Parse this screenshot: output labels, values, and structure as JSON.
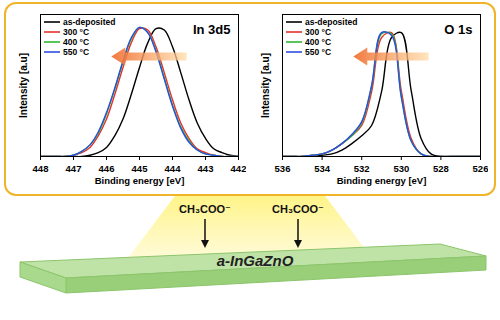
{
  "chart_data": [
    {
      "type": "line",
      "title": "In 3d5",
      "x_label": "Binding energy [eV]",
      "y_label": "Intensity [a.u]",
      "x": [
        442,
        442.25,
        442.5,
        442.75,
        443,
        443.25,
        443.5,
        443.75,
        444,
        444.25,
        444.5,
        444.75,
        445,
        445.25,
        445.5,
        445.75,
        446,
        446.25,
        446.5,
        446.75,
        447,
        447.25,
        447.5,
        447.75,
        448
      ],
      "xlim": [
        448,
        442
      ],
      "xticks": [
        448,
        447,
        446,
        445,
        444,
        443,
        442
      ],
      "ylim": [
        0,
        1.1
      ],
      "tick_labels": "x",
      "legend": "top-left",
      "series": [
        {
          "name": "as-deposited",
          "color": "#000000",
          "values": [
            0,
            0.01,
            0.03,
            0.06,
            0.14,
            0.26,
            0.44,
            0.65,
            0.85,
            0.98,
            0.99,
            0.88,
            0.69,
            0.48,
            0.29,
            0.16,
            0.07,
            0.03,
            0.01,
            0,
            0,
            0,
            0,
            0,
            0
          ]
        },
        {
          "name": "300 °C",
          "color": "#e8302a",
          "values": [
            0,
            0,
            0,
            0.01,
            0.03,
            0.06,
            0.14,
            0.26,
            0.44,
            0.65,
            0.85,
            0.98,
            0.99,
            0.88,
            0.69,
            0.48,
            0.29,
            0.16,
            0.07,
            0.03,
            0.01,
            0,
            0,
            0,
            0
          ]
        },
        {
          "name": "400 °C",
          "color": "#2eb82e",
          "values": [
            0,
            0,
            0,
            0.01,
            0.02,
            0.05,
            0.12,
            0.23,
            0.4,
            0.61,
            0.82,
            0.96,
            1,
            0.91,
            0.73,
            0.52,
            0.33,
            0.18,
            0.09,
            0.04,
            0.01,
            0,
            0,
            0,
            0
          ]
        },
        {
          "name": "550 °C",
          "color": "#2b4fe0",
          "values": [
            0,
            0,
            0,
            0.01,
            0.02,
            0.05,
            0.11,
            0.22,
            0.39,
            0.6,
            0.81,
            0.96,
            1,
            0.92,
            0.74,
            0.53,
            0.34,
            0.19,
            0.09,
            0.04,
            0.01,
            0,
            0,
            0,
            0
          ]
        }
      ]
    },
    {
      "type": "line",
      "title": "O 1s",
      "x_label": "Binding energy [eV]",
      "y_label": "Intensity [a.u]",
      "x": [
        526,
        526.5,
        527,
        527.5,
        528,
        528.5,
        529,
        529.5,
        530,
        530.5,
        531,
        531.5,
        532,
        532.5,
        533,
        533.5,
        534,
        534.5,
        535,
        535.5,
        536
      ],
      "xlim": [
        536,
        526
      ],
      "xticks": [
        536,
        534,
        532,
        530,
        528,
        526
      ],
      "ylim": [
        0,
        1.1
      ],
      "tick_labels": "x",
      "legend": "top-left",
      "series": [
        {
          "name": "as-deposited",
          "color": "#000000",
          "values": [
            0,
            0,
            0,
            0,
            0,
            0.02,
            0.14,
            0.51,
            0.96,
            0.92,
            0.5,
            0.24,
            0.16,
            0.1,
            0.05,
            0.02,
            0.01,
            0,
            0,
            0,
            0
          ]
        },
        {
          "name": "300 °C",
          "color": "#e8302a",
          "values": [
            0,
            0,
            0,
            0,
            0,
            0,
            0.02,
            0.14,
            0.51,
            0.96,
            0.92,
            0.5,
            0.24,
            0.16,
            0.1,
            0.05,
            0.02,
            0.01,
            0,
            0,
            0
          ]
        },
        {
          "name": "400 °C",
          "color": "#2eb82e",
          "values": [
            0,
            0,
            0,
            0,
            0,
            0,
            0.02,
            0.12,
            0.47,
            0.95,
            0.95,
            0.54,
            0.26,
            0.16,
            0.1,
            0.05,
            0.02,
            0.01,
            0,
            0,
            0
          ]
        },
        {
          "name": "550 °C",
          "color": "#2b4fe0",
          "values": [
            0,
            0,
            0,
            0,
            0,
            0,
            0.02,
            0.12,
            0.46,
            0.94,
            0.96,
            0.55,
            0.27,
            0.17,
            0.1,
            0.05,
            0.02,
            0.01,
            0,
            0,
            0
          ]
        }
      ]
    }
  ],
  "diagram": {
    "ions": [
      "CH₃COO⁻",
      "CH₃COO⁻"
    ],
    "film": "a-InGaZnO"
  }
}
